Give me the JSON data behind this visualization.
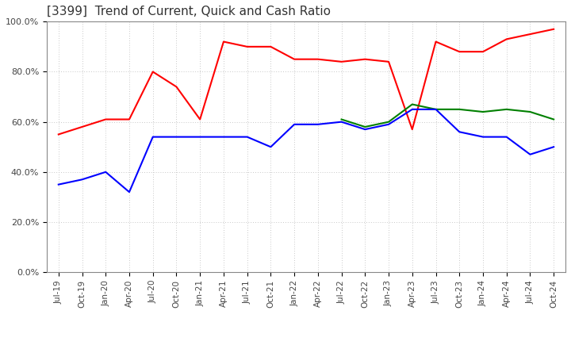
{
  "title": "[3399]  Trend of Current, Quick and Cash Ratio",
  "x_labels": [
    "Jul-19",
    "Oct-19",
    "Jan-20",
    "Apr-20",
    "Jul-20",
    "Oct-20",
    "Jan-21",
    "Apr-21",
    "Jul-21",
    "Oct-21",
    "Jan-22",
    "Apr-22",
    "Jul-22",
    "Oct-22",
    "Jan-23",
    "Apr-23",
    "Jul-23",
    "Oct-23",
    "Jan-24",
    "Apr-24",
    "Jul-24",
    "Oct-24"
  ],
  "current_ratio": [
    55,
    58,
    61,
    61,
    80,
    74,
    61,
    92,
    90,
    90,
    85,
    85,
    84,
    85,
    84,
    57,
    92,
    88,
    88,
    93,
    95,
    97
  ],
  "quick_ratio": [
    null,
    null,
    null,
    null,
    null,
    null,
    null,
    null,
    null,
    null,
    null,
    null,
    61,
    58,
    60,
    67,
    65,
    65,
    64,
    65,
    64,
    61
  ],
  "cash_ratio": [
    35,
    37,
    40,
    32,
    54,
    54,
    54,
    54,
    54,
    50,
    59,
    59,
    60,
    57,
    59,
    65,
    65,
    56,
    54,
    54,
    47,
    50
  ],
  "current_color": "#FF0000",
  "quick_color": "#008000",
  "cash_color": "#0000FF",
  "ylim": [
    0,
    100
  ],
  "ytick_values": [
    0,
    20,
    40,
    60,
    80,
    100
  ],
  "background_color": "#ffffff",
  "grid_color": "#c8c8c8",
  "figsize": [
    7.2,
    4.4
  ],
  "dpi": 100
}
